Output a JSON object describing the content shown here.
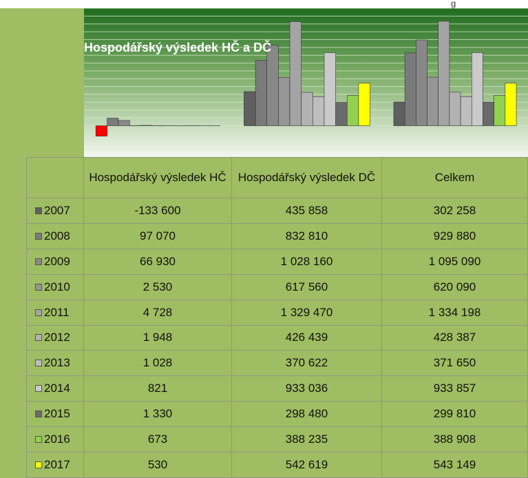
{
  "page_header": "g",
  "chart_data": {
    "type": "bar",
    "title": "Hospodářský výsledek HČ a DČ",
    "categories": [
      "Hospodářský výsledek HČ",
      "Hospodářský výsledek DČ",
      "Celkem"
    ],
    "ylim": [
      -400000,
      1500000
    ],
    "yticks": [
      -400000,
      -300000,
      -200000,
      -100000,
      0,
      100000,
      200000,
      300000,
      400000,
      500000,
      600000,
      700000,
      800000,
      900000,
      1000000,
      1100000,
      1200000,
      1300000,
      1400000,
      1500000
    ],
    "grid": true,
    "negative_color": "#ff0000",
    "series": [
      {
        "name": "2007",
        "color": "#5f5f5f",
        "values": [
          -133600,
          435858,
          302258
        ],
        "value_labels": [
          "-133 600",
          "435 858",
          "302 258"
        ]
      },
      {
        "name": "2008",
        "color": "#7a7a7a",
        "values": [
          97070,
          832810,
          929880
        ],
        "value_labels": [
          "97 070",
          "832 810",
          "929 880"
        ]
      },
      {
        "name": "2009",
        "color": "#888888",
        "values": [
          66930,
          1028160,
          1095090
        ],
        "value_labels": [
          "66 930",
          "1 028 160",
          "1 095 090"
        ]
      },
      {
        "name": "2010",
        "color": "#969696",
        "values": [
          2530,
          617560,
          620090
        ],
        "value_labels": [
          "2 530",
          "617 560",
          "620 090"
        ]
      },
      {
        "name": "2011",
        "color": "#a4a4a4",
        "values": [
          4728,
          1329470,
          1334198
        ],
        "value_labels": [
          "4 728",
          "1 329 470",
          "1 334 198"
        ]
      },
      {
        "name": "2012",
        "color": "#b2b2b2",
        "values": [
          1948,
          426439,
          428387
        ],
        "value_labels": [
          "1 948",
          "426 439",
          "428 387"
        ]
      },
      {
        "name": "2013",
        "color": "#bebebe",
        "values": [
          1028,
          370622,
          371650
        ],
        "value_labels": [
          "1 028",
          "370 622",
          "371 650"
        ]
      },
      {
        "name": "2014",
        "color": "#cacaca",
        "values": [
          821,
          933036,
          933857
        ],
        "value_labels": [
          "821",
          "933 036",
          "933 857"
        ]
      },
      {
        "name": "2015",
        "color": "#6a6a6a",
        "values": [
          1330,
          298480,
          299810
        ],
        "value_labels": [
          "1 330",
          "298 480",
          "299 810"
        ]
      },
      {
        "name": "2016",
        "color": "#92d050",
        "values": [
          673,
          388235,
          388908
        ],
        "value_labels": [
          "673",
          "388 235",
          "388 908"
        ]
      },
      {
        "name": "2017",
        "color": "#ffff00",
        "values": [
          530,
          542619,
          543149
        ],
        "value_labels": [
          "530",
          "542 619",
          "543 149"
        ]
      }
    ]
  }
}
